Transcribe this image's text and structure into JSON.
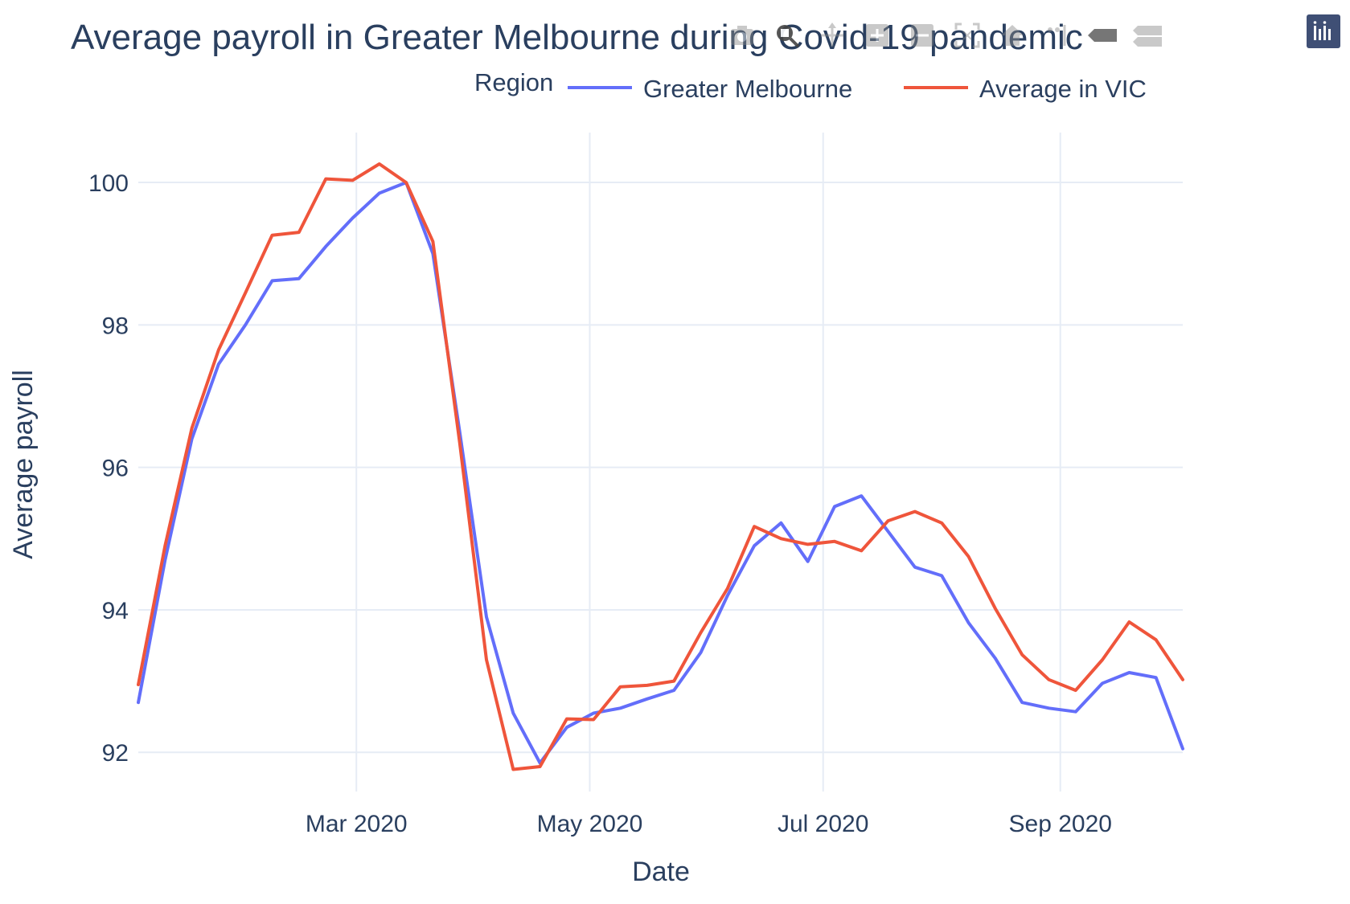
{
  "chart_data": {
    "type": "line",
    "title": "Average payroll in Greater Melbourne during Covid-19 pandemic",
    "xlabel": "Date",
    "ylabel": "Average payroll",
    "legend_title": "Region",
    "legend_position": "top-right",
    "grid": true,
    "x_ticks": [
      {
        "date": "2020-03-01",
        "label": "Mar 2020"
      },
      {
        "date": "2020-05-01",
        "label": "May 2020"
      },
      {
        "date": "2020-07-01",
        "label": "Jul 2020"
      },
      {
        "date": "2020-09-01",
        "label": "Sep 2020"
      }
    ],
    "y_ticks": [
      92,
      94,
      96,
      98,
      100
    ],
    "xlim": [
      "2020-01-04",
      "2020-10-03"
    ],
    "ylim": [
      91.45,
      100.7
    ],
    "x": [
      "2020-01-04",
      "2020-01-11",
      "2020-01-18",
      "2020-01-25",
      "2020-02-01",
      "2020-02-08",
      "2020-02-15",
      "2020-02-22",
      "2020-02-29",
      "2020-03-07",
      "2020-03-14",
      "2020-03-21",
      "2020-03-28",
      "2020-04-04",
      "2020-04-11",
      "2020-04-18",
      "2020-04-25",
      "2020-05-02",
      "2020-05-09",
      "2020-05-16",
      "2020-05-23",
      "2020-05-30",
      "2020-06-06",
      "2020-06-13",
      "2020-06-20",
      "2020-06-27",
      "2020-07-04",
      "2020-07-11",
      "2020-07-18",
      "2020-07-25",
      "2020-08-01",
      "2020-08-08",
      "2020-08-15",
      "2020-08-22",
      "2020-08-29",
      "2020-09-05",
      "2020-09-12",
      "2020-09-19",
      "2020-09-26",
      "2020-10-03"
    ],
    "series": [
      {
        "name": "Greater Melbourne",
        "color": "#636efa",
        "values": [
          92.7,
          94.7,
          96.4,
          97.45,
          98.0,
          98.62,
          98.65,
          99.1,
          99.5,
          99.85,
          100.0,
          99.0,
          96.5,
          93.9,
          92.55,
          91.85,
          92.35,
          92.55,
          92.62,
          92.75,
          92.87,
          93.4,
          94.2,
          94.9,
          95.22,
          94.68,
          95.45,
          95.6,
          95.1,
          94.6,
          94.48,
          93.82,
          93.32,
          92.7,
          92.62,
          92.57,
          92.97,
          93.12,
          93.05,
          92.05
        ]
      },
      {
        "name": "Average in VIC",
        "color": "#ef553b",
        "values": [
          92.95,
          94.9,
          96.55,
          97.65,
          98.45,
          99.26,
          99.3,
          100.05,
          100.03,
          100.26,
          100.0,
          99.17,
          96.35,
          93.3,
          91.76,
          91.8,
          92.47,
          92.46,
          92.92,
          92.94,
          93.0,
          93.68,
          94.3,
          95.17,
          95.0,
          94.92,
          94.96,
          94.83,
          95.25,
          95.38,
          95.22,
          94.75,
          94.02,
          93.37,
          93.02,
          92.87,
          93.3,
          93.83,
          93.58,
          93.02
        ]
      }
    ]
  },
  "modebar": {
    "icons": [
      "camera-icon",
      "zoom-icon",
      "pan-icon",
      "zoom-in-icon",
      "zoom-out-icon",
      "autoscale-icon",
      "reset-axes-icon",
      "spike-lines-icon",
      "hover-closest-icon",
      "hover-compare-icon"
    ],
    "logo": "plotly-logo-icon"
  }
}
